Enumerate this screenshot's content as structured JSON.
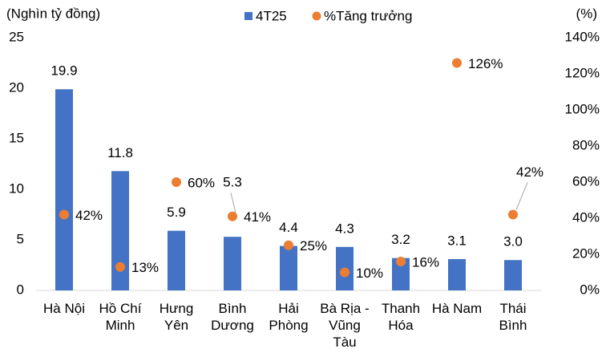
{
  "chart_data": {
    "type": "bar-scatter",
    "y_label": "(Nghìn tỷ đồng)",
    "y2_label": "(%)",
    "categories": [
      "Hà Nội",
      "Hồ Chí Minh",
      "Hưng Yên",
      "Bình Dương",
      "Hải Phòng",
      "Bà Rịa - Vũng Tàu",
      "Thanh Hóa",
      "Hà Nam",
      "Thái Bình"
    ],
    "series": [
      {
        "name": "4T25",
        "type": "bar",
        "color": "#4472c4",
        "values": [
          19.9,
          11.8,
          5.9,
          5.3,
          4.4,
          4.3,
          3.2,
          3.1,
          3.0
        ],
        "value_labels": [
          "19.9",
          "11.8",
          "5.9",
          "5.3",
          "4.4",
          "4.3",
          "3.2",
          "3.1",
          "3.0"
        ]
      },
      {
        "name": "%Tăng trưởng",
        "type": "scatter",
        "axis": "y2",
        "color": "#ed7d31",
        "values": [
          42,
          13,
          60,
          41,
          25,
          10,
          16,
          126,
          42
        ],
        "value_labels": [
          "42%",
          "13%",
          "60%",
          "41%",
          "25%",
          "10%",
          "16%",
          "126%",
          "42%"
        ]
      }
    ],
    "ylim": [
      0,
      25
    ],
    "yticks": [
      0,
      5,
      10,
      15,
      20,
      25
    ],
    "y2lim": [
      0,
      140
    ],
    "y2ticks": [
      {
        "value": 0,
        "label": "0%"
      },
      {
        "value": 20,
        "label": "20%"
      },
      {
        "value": 40,
        "label": "40%"
      },
      {
        "value": 60,
        "label": "60%"
      },
      {
        "value": 80,
        "label": "80%"
      },
      {
        "value": 100,
        "label": "100%"
      },
      {
        "value": 120,
        "label": "120%"
      },
      {
        "value": 140,
        "label": "140%"
      }
    ],
    "legend": "top",
    "grid": false
  }
}
